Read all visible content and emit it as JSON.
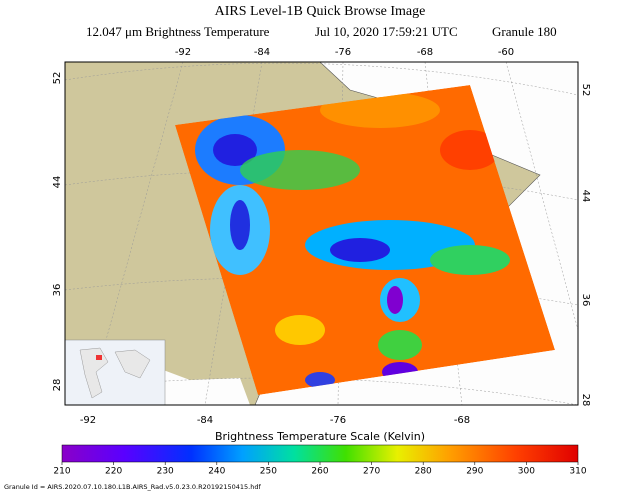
{
  "header": {
    "title": "AIRS Level-1B Quick Browse Image",
    "subtitle": [
      "12.047 μm Brightness Temperature",
      "Jul 10, 2020 17:59:21 UTC",
      "Granule 180"
    ]
  },
  "map": {
    "lon_top": [
      -92,
      -84,
      -76,
      -68,
      -60
    ],
    "lon_bottom": [
      -92,
      -84,
      -76,
      -68
    ],
    "lat_left": [
      52,
      44,
      36,
      28
    ],
    "lat_right": [
      52,
      44,
      36,
      28
    ]
  },
  "colorbar": {
    "title": "Brightness Temperature Scale (Kelvin)",
    "ticks": [
      210,
      220,
      230,
      240,
      250,
      260,
      270,
      280,
      290,
      300,
      310
    ]
  },
  "footer": "Granule Id = AIRS.2020.07.10.180.L1B.AIRS_Rad.v5.0.23.0.R20192150415.hdf"
}
